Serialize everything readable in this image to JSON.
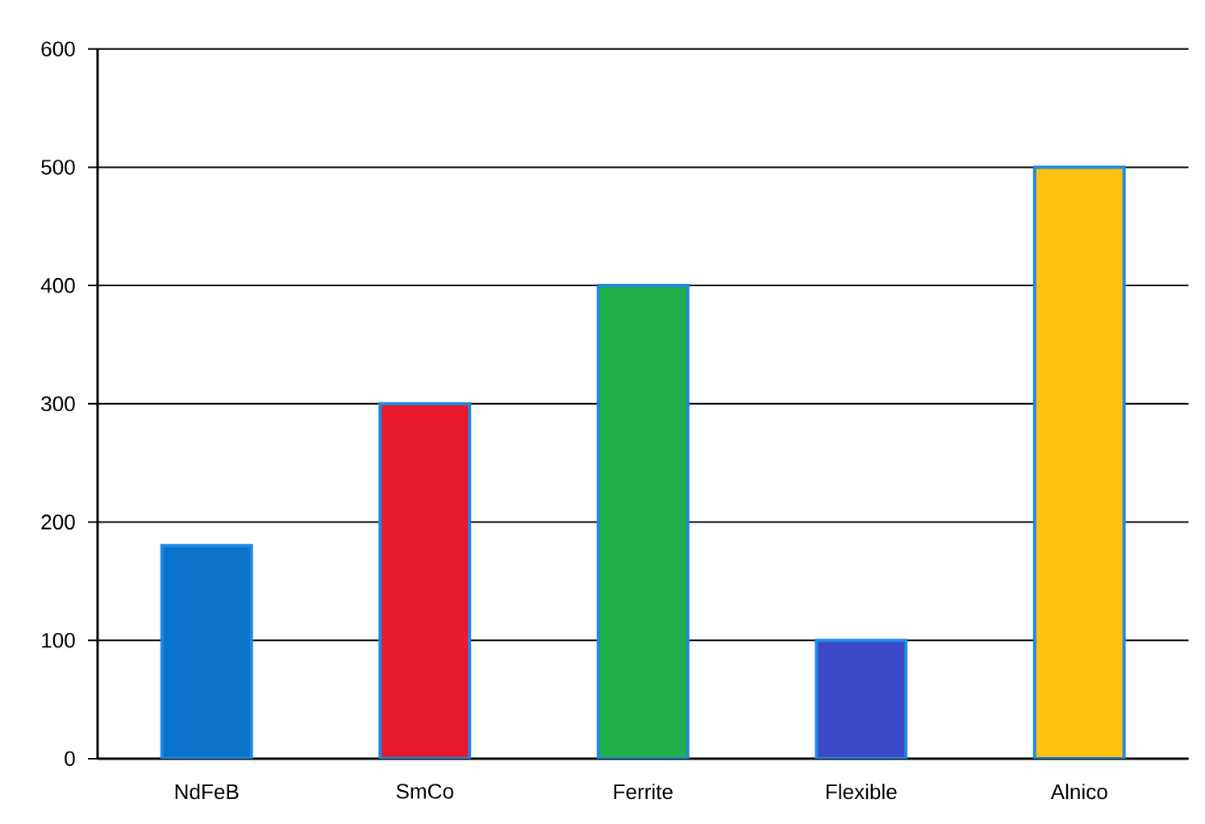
{
  "chart_data": {
    "type": "bar",
    "categories": [
      "NdFeB",
      "SmCo",
      "Ferrite",
      "Flexible",
      "Alnico"
    ],
    "values": [
      180,
      300,
      400,
      100,
      500
    ],
    "colors": [
      "#0a72c8",
      "#e8192c",
      "#22b04b",
      "#3b48c8",
      "#fdc10f"
    ],
    "ylim": [
      0,
      600
    ],
    "yticks": [
      0,
      100,
      200,
      300,
      400,
      500,
      600
    ],
    "grid": "y"
  }
}
